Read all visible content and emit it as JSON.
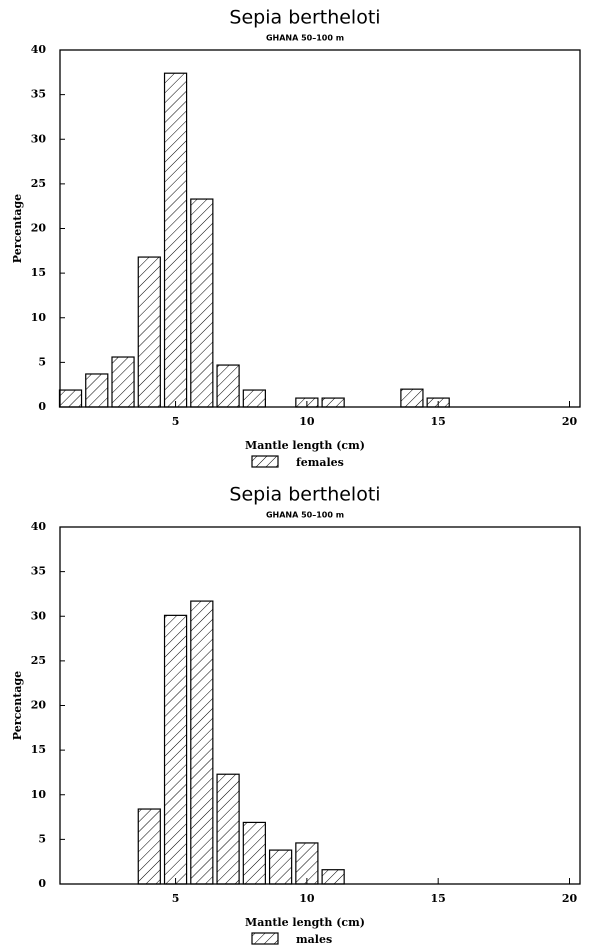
{
  "chart_data": [
    {
      "type": "bar",
      "title": "Sepia bertheloti",
      "subtitle": "GHANA 50–100 m",
      "x_label": "Mantle length (cm)",
      "y_label": "Percentage",
      "x": [
        1,
        2,
        3,
        4,
        5,
        6,
        7,
        8,
        10,
        11,
        14,
        15
      ],
      "series": [
        {
          "name": "females",
          "color": "#000000",
          "values": [
            1.9,
            3.7,
            5.6,
            16.8,
            37.4,
            23.3,
            4.7,
            1.9,
            1.0,
            1.0,
            2.0,
            1.0
          ]
        }
      ],
      "xlim": [
        0.6,
        20.4
      ],
      "xticks": [
        5,
        10,
        15,
        20
      ],
      "ylim": [
        0,
        40
      ],
      "yticks": [
        0,
        5,
        10,
        15,
        20,
        25,
        30,
        35,
        40
      ]
    },
    {
      "type": "bar",
      "title": "Sepia bertheloti",
      "subtitle": "GHANA 50–100 m",
      "x_label": "Mantle length (cm)",
      "y_label": "Percentage",
      "x": [
        4,
        5,
        6,
        7,
        8,
        9,
        10,
        11
      ],
      "series": [
        {
          "name": "males",
          "color": "#000000",
          "values": [
            8.4,
            30.1,
            31.7,
            12.3,
            6.9,
            3.8,
            4.6,
            1.6
          ]
        }
      ],
      "xlim": [
        0.6,
        20.4
      ],
      "xticks": [
        5,
        10,
        15,
        20
      ],
      "ylim": [
        0,
        40
      ],
      "yticks": [
        0,
        5,
        10,
        15,
        20,
        25,
        30,
        35,
        40
      ]
    }
  ]
}
